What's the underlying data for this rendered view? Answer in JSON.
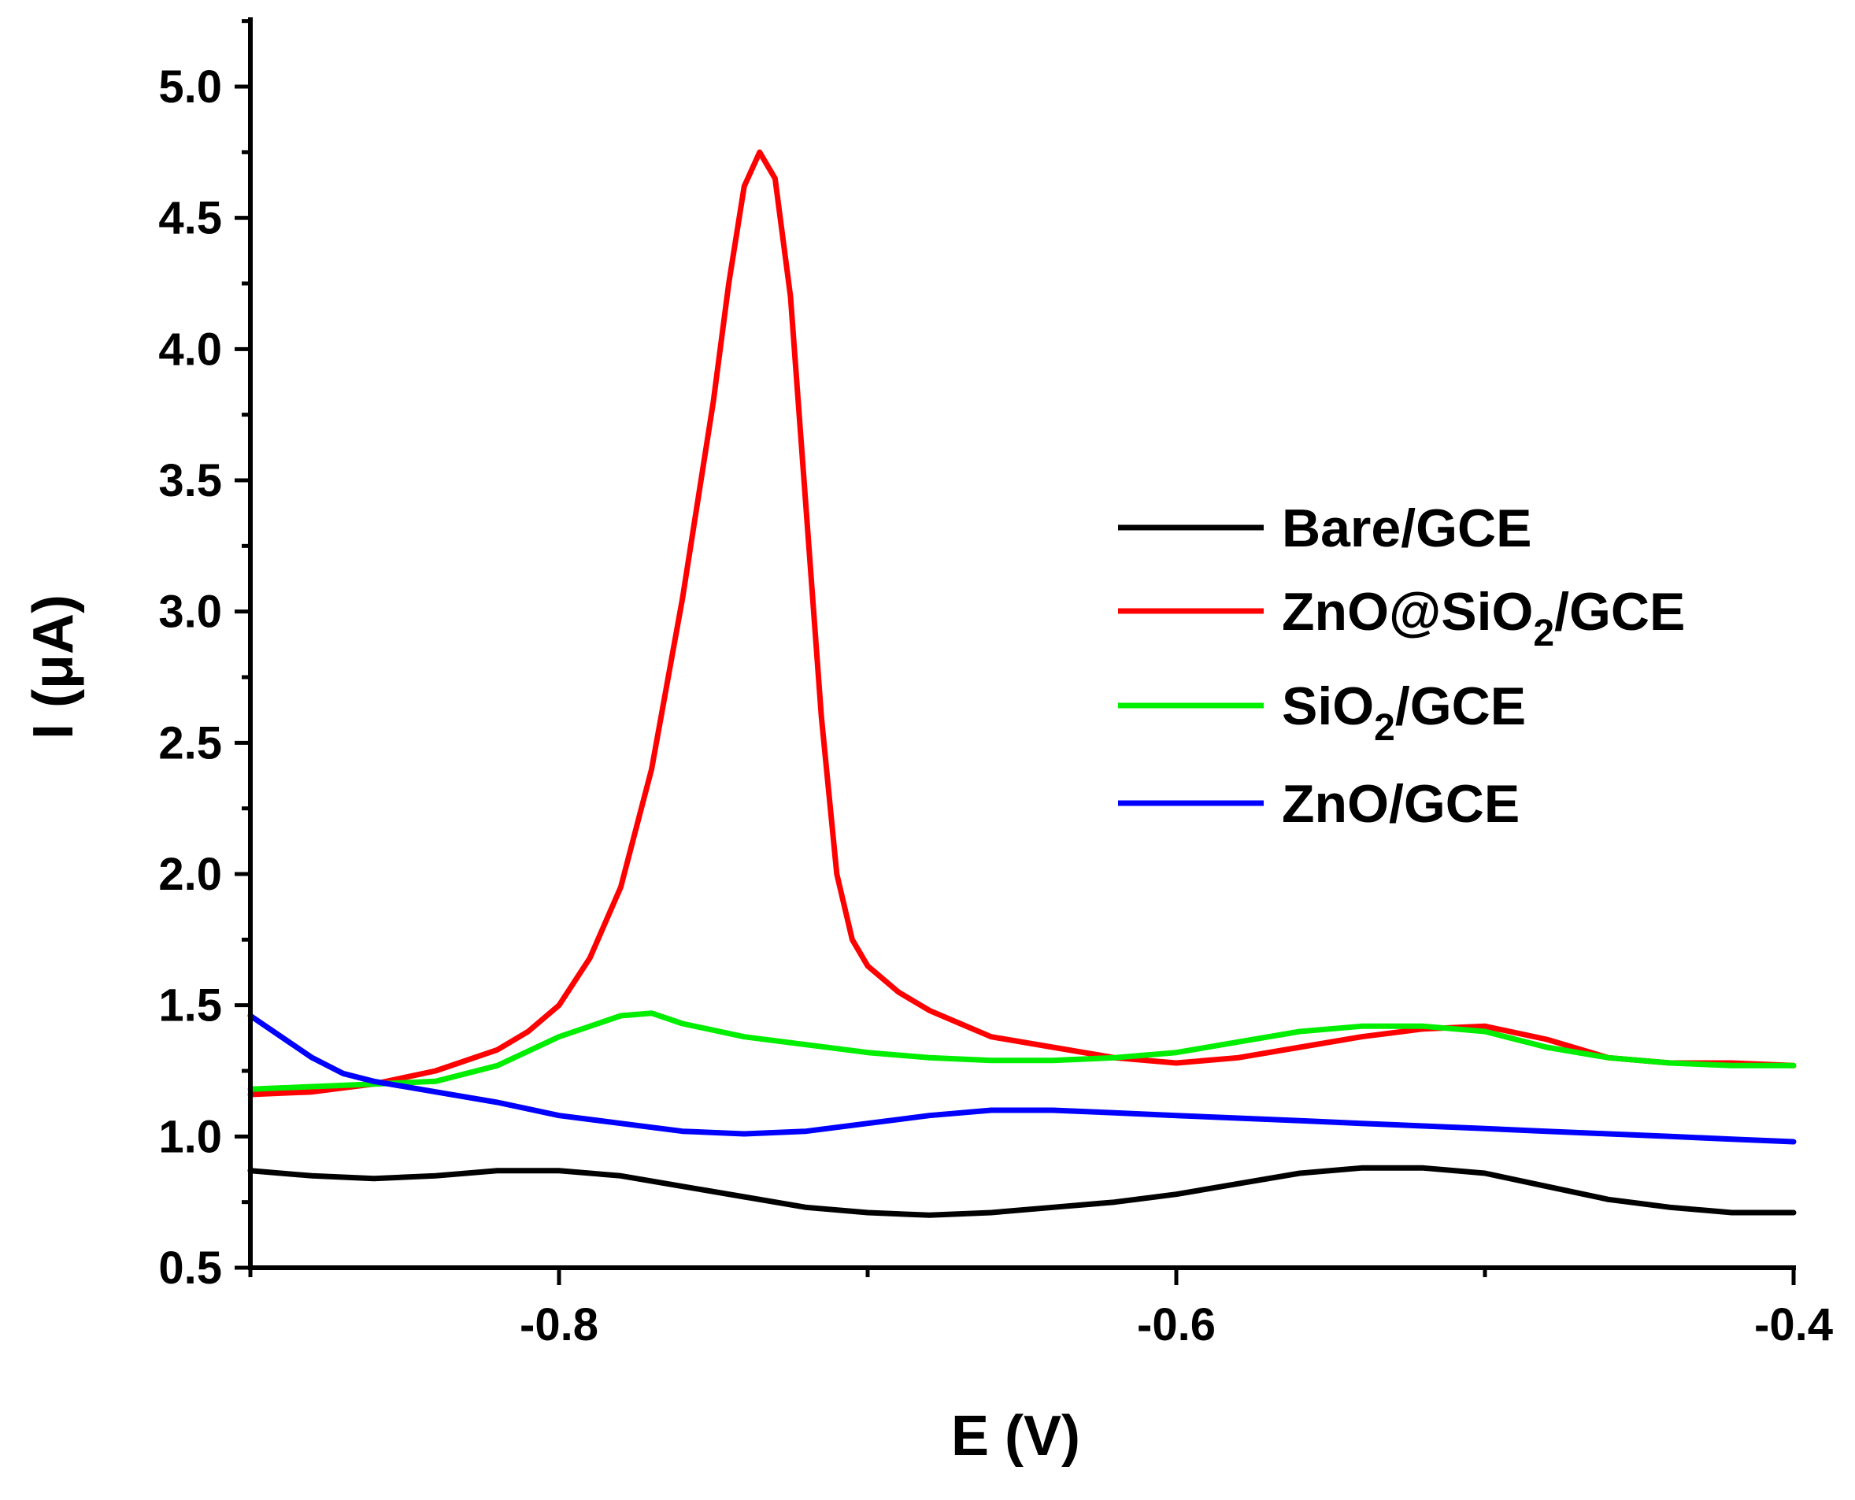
{
  "chart_data": {
    "type": "line",
    "xlabel": "E (V)",
    "ylabel": "I (μA)",
    "xlim": [
      -0.9,
      -0.4
    ],
    "ylim": [
      0.5,
      5.25
    ],
    "x_ticks": [
      -0.8,
      -0.6,
      -0.4
    ],
    "x_tick_labels": [
      "-0.8",
      "-0.6",
      "-0.4"
    ],
    "y_ticks": [
      0.5,
      1.0,
      1.5,
      2.0,
      2.5,
      3.0,
      3.5,
      4.0,
      4.5,
      5.0
    ],
    "y_tick_labels": [
      "0.5",
      "1.0",
      "1.5",
      "2.0",
      "2.5",
      "3.0",
      "3.5",
      "4.0",
      "4.5",
      "5.0"
    ],
    "grid": false,
    "legend_position": "right",
    "series": [
      {
        "name": "Bare/GCE",
        "legend_main": "Bare/GCE",
        "legend_sub": "",
        "legend_tail": "",
        "color": "#000000",
        "points": [
          [
            -0.9,
            0.87
          ],
          [
            -0.88,
            0.85
          ],
          [
            -0.86,
            0.84
          ],
          [
            -0.84,
            0.85
          ],
          [
            -0.82,
            0.87
          ],
          [
            -0.8,
            0.87
          ],
          [
            -0.78,
            0.85
          ],
          [
            -0.76,
            0.81
          ],
          [
            -0.74,
            0.77
          ],
          [
            -0.72,
            0.73
          ],
          [
            -0.7,
            0.71
          ],
          [
            -0.68,
            0.7
          ],
          [
            -0.66,
            0.71
          ],
          [
            -0.64,
            0.73
          ],
          [
            -0.62,
            0.75
          ],
          [
            -0.6,
            0.78
          ],
          [
            -0.58,
            0.82
          ],
          [
            -0.56,
            0.86
          ],
          [
            -0.54,
            0.88
          ],
          [
            -0.52,
            0.88
          ],
          [
            -0.5,
            0.86
          ],
          [
            -0.48,
            0.81
          ],
          [
            -0.46,
            0.76
          ],
          [
            -0.44,
            0.73
          ],
          [
            -0.42,
            0.71
          ],
          [
            -0.4,
            0.71
          ]
        ]
      },
      {
        "name": "ZnO@SiO2/GCE",
        "legend_main": "ZnO@SiO",
        "legend_sub": "2",
        "legend_tail": "/GCE",
        "color": "#ff0000",
        "points": [
          [
            -0.9,
            1.16
          ],
          [
            -0.88,
            1.17
          ],
          [
            -0.86,
            1.2
          ],
          [
            -0.84,
            1.25
          ],
          [
            -0.82,
            1.33
          ],
          [
            -0.81,
            1.4
          ],
          [
            -0.8,
            1.5
          ],
          [
            -0.79,
            1.68
          ],
          [
            -0.78,
            1.95
          ],
          [
            -0.77,
            2.4
          ],
          [
            -0.76,
            3.05
          ],
          [
            -0.75,
            3.8
          ],
          [
            -0.745,
            4.25
          ],
          [
            -0.74,
            4.62
          ],
          [
            -0.735,
            4.75
          ],
          [
            -0.73,
            4.65
          ],
          [
            -0.725,
            4.2
          ],
          [
            -0.72,
            3.4
          ],
          [
            -0.715,
            2.6
          ],
          [
            -0.71,
            2.0
          ],
          [
            -0.705,
            1.75
          ],
          [
            -0.7,
            1.65
          ],
          [
            -0.69,
            1.55
          ],
          [
            -0.68,
            1.48
          ],
          [
            -0.67,
            1.43
          ],
          [
            -0.66,
            1.38
          ],
          [
            -0.64,
            1.34
          ],
          [
            -0.62,
            1.3
          ],
          [
            -0.6,
            1.28
          ],
          [
            -0.58,
            1.3
          ],
          [
            -0.56,
            1.34
          ],
          [
            -0.54,
            1.38
          ],
          [
            -0.52,
            1.41
          ],
          [
            -0.5,
            1.42
          ],
          [
            -0.48,
            1.37
          ],
          [
            -0.46,
            1.3
          ],
          [
            -0.44,
            1.28
          ],
          [
            -0.42,
            1.28
          ],
          [
            -0.4,
            1.27
          ]
        ]
      },
      {
        "name": "SiO2/GCE",
        "legend_main": "SiO",
        "legend_sub": "2",
        "legend_tail": "/GCE",
        "color": "#00ee00",
        "points": [
          [
            -0.9,
            1.18
          ],
          [
            -0.88,
            1.19
          ],
          [
            -0.86,
            1.2
          ],
          [
            -0.84,
            1.21
          ],
          [
            -0.82,
            1.27
          ],
          [
            -0.8,
            1.38
          ],
          [
            -0.78,
            1.46
          ],
          [
            -0.77,
            1.47
          ],
          [
            -0.76,
            1.43
          ],
          [
            -0.74,
            1.38
          ],
          [
            -0.72,
            1.35
          ],
          [
            -0.7,
            1.32
          ],
          [
            -0.68,
            1.3
          ],
          [
            -0.66,
            1.29
          ],
          [
            -0.64,
            1.29
          ],
          [
            -0.62,
            1.3
          ],
          [
            -0.6,
            1.32
          ],
          [
            -0.58,
            1.36
          ],
          [
            -0.56,
            1.4
          ],
          [
            -0.54,
            1.42
          ],
          [
            -0.52,
            1.42
          ],
          [
            -0.5,
            1.4
          ],
          [
            -0.48,
            1.34
          ],
          [
            -0.46,
            1.3
          ],
          [
            -0.44,
            1.28
          ],
          [
            -0.42,
            1.27
          ],
          [
            -0.4,
            1.27
          ]
        ]
      },
      {
        "name": "ZnO/GCE",
        "legend_main": "ZnO/GCE",
        "legend_sub": "",
        "legend_tail": "",
        "color": "#0000ff",
        "points": [
          [
            -0.9,
            1.46
          ],
          [
            -0.89,
            1.38
          ],
          [
            -0.88,
            1.3
          ],
          [
            -0.87,
            1.24
          ],
          [
            -0.86,
            1.21
          ],
          [
            -0.84,
            1.17
          ],
          [
            -0.82,
            1.13
          ],
          [
            -0.8,
            1.08
          ],
          [
            -0.78,
            1.05
          ],
          [
            -0.76,
            1.02
          ],
          [
            -0.74,
            1.01
          ],
          [
            -0.72,
            1.02
          ],
          [
            -0.7,
            1.05
          ],
          [
            -0.68,
            1.08
          ],
          [
            -0.66,
            1.1
          ],
          [
            -0.64,
            1.1
          ],
          [
            -0.62,
            1.09
          ],
          [
            -0.6,
            1.08
          ],
          [
            -0.58,
            1.07
          ],
          [
            -0.56,
            1.06
          ],
          [
            -0.54,
            1.05
          ],
          [
            -0.52,
            1.04
          ],
          [
            -0.5,
            1.03
          ],
          [
            -0.48,
            1.02
          ],
          [
            -0.46,
            1.01
          ],
          [
            -0.44,
            1.0
          ],
          [
            -0.42,
            0.99
          ],
          [
            -0.4,
            0.98
          ]
        ]
      }
    ]
  }
}
